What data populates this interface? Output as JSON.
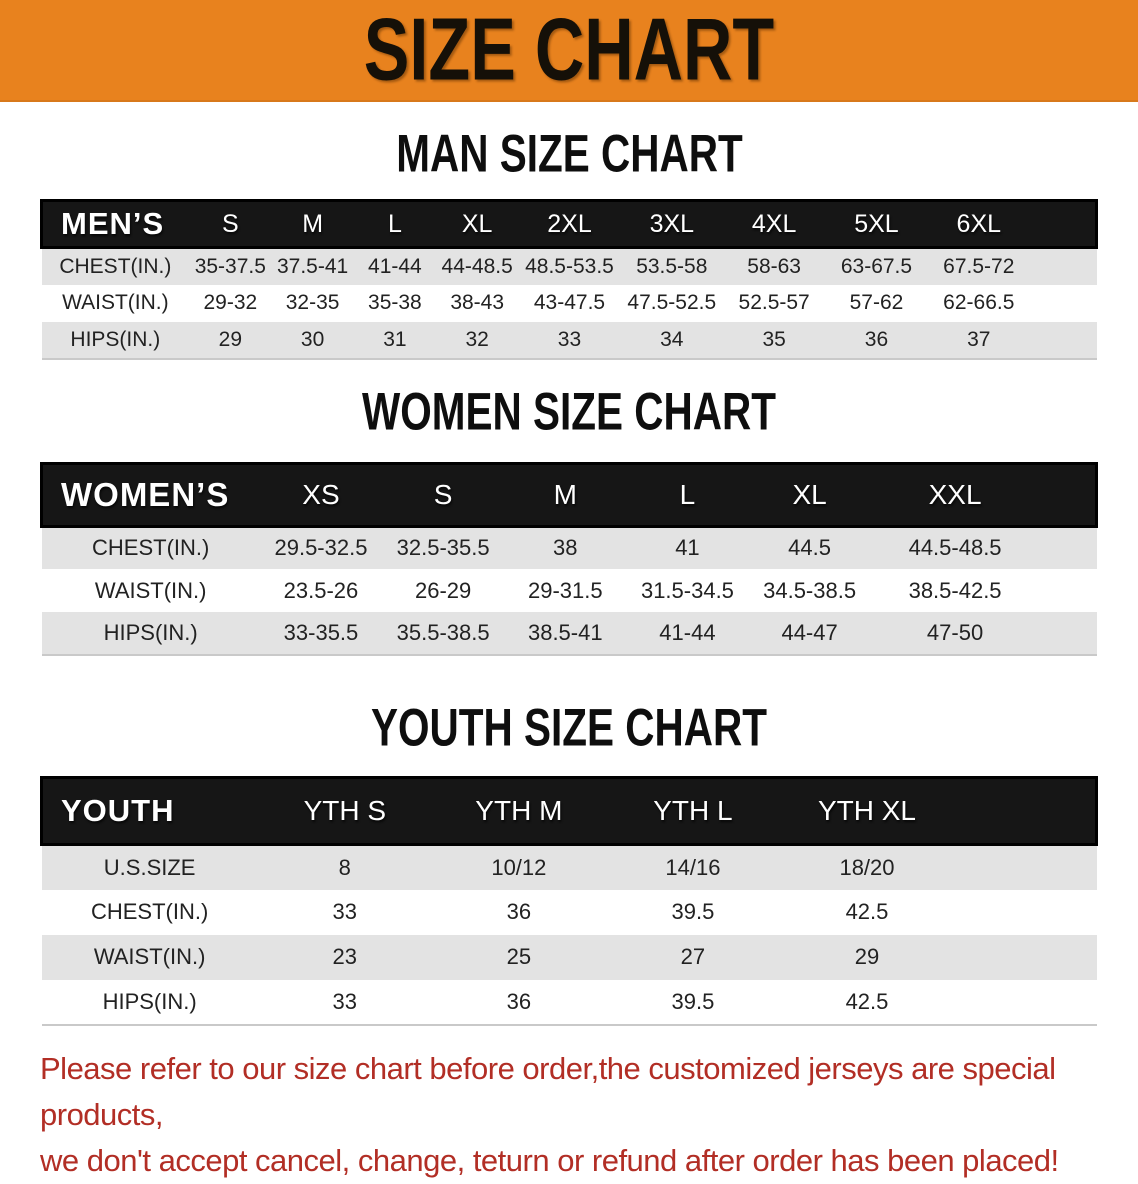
{
  "banner": {
    "title": "SIZE CHART"
  },
  "colors": {
    "banner_bg": "#E8821E",
    "table_header_bg": "#161616",
    "row_alt_bg": "#E3E3E3",
    "footer_text": "#B22E25"
  },
  "sections": [
    {
      "title": "MAN SIZE CHART",
      "table": {
        "corner_label": "MEN’S",
        "columns": [
          "S",
          "M",
          "L",
          "XL",
          "2XL",
          "3XL",
          "4XL",
          "5XL",
          "6XL"
        ],
        "rows": [
          {
            "label": "CHEST(IN.)",
            "values": [
              "35-37.5",
              "37.5-41",
              "41-44",
              "44-48.5",
              "48.5-53.5",
              "53.5-58",
              "58-63",
              "63-67.5",
              "67.5-72"
            ]
          },
          {
            "label": "WAIST(IN.)",
            "values": [
              "29-32",
              "32-35",
              "35-38",
              "38-43",
              "43-47.5",
              "47.5-52.5",
              "52.5-57",
              "57-62",
              "62-66.5"
            ]
          },
          {
            "label": "HIPS(IN.)",
            "values": [
              "29",
              "30",
              "31",
              "32",
              "33",
              "34",
              "35",
              "36",
              "37"
            ]
          }
        ]
      }
    },
    {
      "title": "WOMEN SIZE CHART",
      "table": {
        "corner_label": "WOMEN’S",
        "columns": [
          "XS",
          "S",
          "M",
          "L",
          "XL",
          "XXL"
        ],
        "rows": [
          {
            "label": "CHEST(IN.)",
            "values": [
              "29.5-32.5",
              "32.5-35.5",
              "38",
              "41",
              "44.5",
              "44.5-48.5"
            ]
          },
          {
            "label": "WAIST(IN.)",
            "values": [
              "23.5-26",
              "26-29",
              "29-31.5",
              "31.5-34.5",
              "34.5-38.5",
              "38.5-42.5"
            ]
          },
          {
            "label": "HIPS(IN.)",
            "values": [
              "33-35.5",
              "35.5-38.5",
              "38.5-41",
              "41-44",
              "44-47",
              "47-50"
            ]
          }
        ]
      }
    },
    {
      "title": "YOUTH SIZE CHART",
      "table": {
        "corner_label": "YOUTH",
        "columns": [
          "YTH S",
          "YTH M",
          "YTH L",
          "YTH XL"
        ],
        "rows": [
          {
            "label": "U.S.SIZE",
            "values": [
              "8",
              "10/12",
              "14/16",
              "18/20"
            ]
          },
          {
            "label": "CHEST(IN.)",
            "values": [
              "33",
              "36",
              "39.5",
              "42.5"
            ]
          },
          {
            "label": "WAIST(IN.)",
            "values": [
              "23",
              "25",
              "27",
              "29"
            ]
          },
          {
            "label": "HIPS(IN.)",
            "values": [
              "33",
              "36",
              "39.5",
              "42.5"
            ]
          }
        ]
      }
    }
  ],
  "footer": {
    "lines": [
      "Please refer to our size chart before order,the customized jerseys are special products,",
      "we don't accept cancel, change, teturn or refund after order has been placed!"
    ]
  }
}
